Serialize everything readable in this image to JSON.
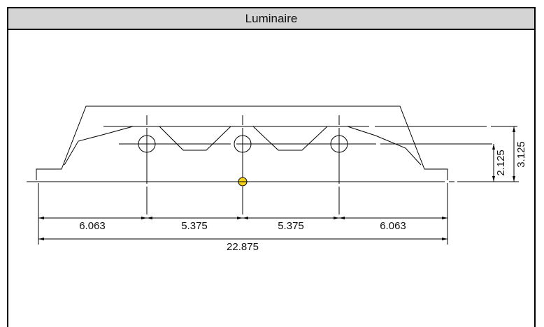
{
  "window": {
    "title": "Luminaire"
  },
  "dimensions": {
    "bays": [
      "6.063",
      "5.375",
      "5.375",
      "6.063"
    ],
    "overall_width": "22.875",
    "height_lower": "2.125",
    "height_upper": "3.125"
  },
  "colors": {
    "origin_marker": "#f2d21b",
    "line": "#000000"
  }
}
